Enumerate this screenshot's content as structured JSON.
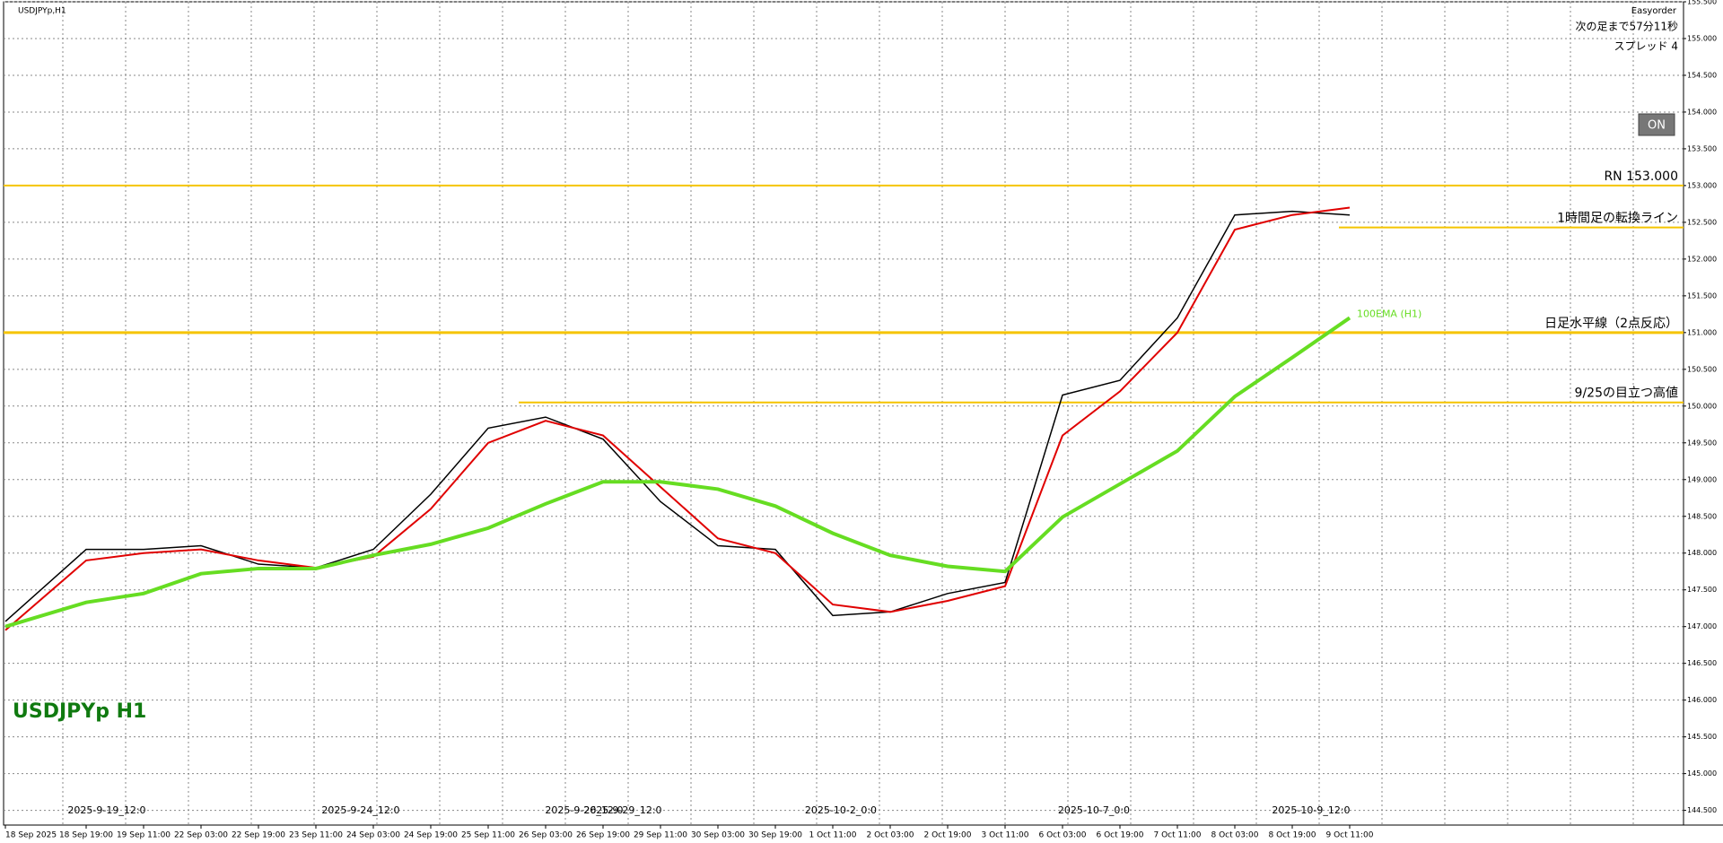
{
  "chart_data": {
    "type": "line",
    "title": "USDJPYp,H1",
    "watermark": "USDJPYp H1",
    "indicator": "Easyorder",
    "countdown": "次の足まで57分11秒",
    "spread": "スプレッド 4",
    "button": "ON",
    "categories": [
      "18 Sep 2025",
      "18 Sep 19:00",
      "19 Sep 11:00",
      "22 Sep 03:00",
      "22 Sep 19:00",
      "23 Sep 11:00",
      "24 Sep 03:00",
      "24 Sep 19:00",
      "25 Sep 11:00",
      "26 Sep 03:00",
      "26 Sep 19:00",
      "29 Sep 11:00",
      "30 Sep 03:00",
      "30 Sep 19:00",
      "1 Oct 11:00",
      "2 Oct 03:00",
      "2 Oct 19:00",
      "3 Oct 11:00",
      "6 Oct 03:00",
      "6 Oct 19:00",
      "7 Oct 11:00",
      "8 Oct 03:00",
      "8 Oct 19:00",
      "9 Oct 11:00"
    ],
    "time_markers": [
      "2025-9-19_12:0",
      "2025-9-24_12:0",
      "2025-9-26_12:0",
      "2025-9-29_12:0",
      "2025-10-2_0:0",
      "2025-10-7_0:0",
      "2025-10-9_12:0"
    ],
    "series": [
      {
        "color": "#000000",
        "values": [
          147.07,
          148.05,
          148.05,
          148.1,
          147.85,
          147.8,
          148.05,
          148.8,
          149.7,
          149.85,
          149.55,
          148.7,
          148.1,
          148.05,
          147.15,
          147.2,
          147.45,
          147.6,
          150.15,
          150.35,
          151.2,
          152.6,
          152.65,
          152.6
        ]
      },
      {
        "color": "#e00000",
        "values": [
          146.95,
          147.9,
          148.0,
          148.05,
          147.9,
          147.8,
          147.95,
          148.6,
          149.5,
          149.8,
          149.6,
          148.9,
          148.2,
          148.0,
          147.3,
          147.2,
          147.35,
          147.55,
          149.6,
          150.2,
          151.0,
          152.4,
          152.6,
          152.7
        ]
      },
      {
        "name": "100EMA (H1)",
        "color": "#66dd22",
        "values": [
          147.0,
          147.33,
          147.45,
          147.72,
          147.79,
          147.79,
          147.97,
          148.12,
          148.34,
          148.67,
          148.97,
          148.97,
          148.87,
          148.64,
          148.27,
          147.97,
          147.82,
          147.75,
          148.49,
          148.94,
          149.39,
          150.13,
          150.66,
          151.2
        ]
      }
    ],
    "levels": [
      {
        "label": "RN 153.000",
        "value": 153.0,
        "color": "#f5c400"
      },
      {
        "label": "1時間足の転換ライン",
        "value": 152.43,
        "color": "#f5c400"
      },
      {
        "label": "日足水平線（2点反応）",
        "value": 151.0,
        "color": "#f5c400"
      },
      {
        "label": "9/25の目立つ高値",
        "value": 150.05,
        "color": "#f5c400"
      }
    ],
    "ylim": [
      144.3,
      155.5
    ],
    "yticks": [
      {
        "value": 144.5,
        "label": "144.500"
      },
      {
        "value": 145.0,
        "label": "145.000"
      },
      {
        "value": 145.5,
        "label": "145.500"
      },
      {
        "value": 146.0,
        "label": "146.000"
      },
      {
        "value": 146.5,
        "label": "146.500"
      },
      {
        "value": 147.0,
        "label": "147.000"
      },
      {
        "value": 147.5,
        "label": "147.500"
      },
      {
        "value": 148.0,
        "label": "148.000"
      },
      {
        "value": 148.5,
        "label": "148.500"
      },
      {
        "value": 149.0,
        "label": "149.000"
      },
      {
        "value": 149.5,
        "label": "149.500"
      },
      {
        "value": 150.0,
        "label": "150.000"
      },
      {
        "value": 150.5,
        "label": "150.500"
      },
      {
        "value": 151.0,
        "label": "151.000"
      },
      {
        "value": 151.5,
        "label": "151.500"
      },
      {
        "value": 152.0,
        "label": "152.000"
      },
      {
        "value": 152.5,
        "label": "152.500"
      },
      {
        "value": 153.0,
        "label": "153.000"
      },
      {
        "value": 153.5,
        "label": "153.500"
      },
      {
        "value": 154.0,
        "label": "154.000"
      },
      {
        "value": 154.5,
        "label": "154.500"
      },
      {
        "value": 155.0,
        "label": "155.000"
      },
      {
        "value": 155.5,
        "label": "155.500"
      }
    ],
    "grid": true
  }
}
